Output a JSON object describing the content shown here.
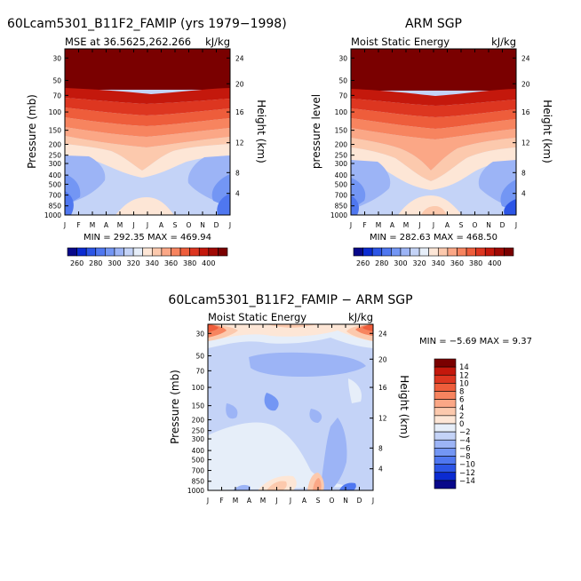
{
  "figure": {
    "colors": {
      "mse": [
        "#08088a",
        "#0b2bd1",
        "#2c55e6",
        "#4f77f0",
        "#7396f4",
        "#9cb4f6",
        "#c4d3f7",
        "#e6eef9",
        "#fde6d6",
        "#fcc9ad",
        "#fba786",
        "#f7845f",
        "#ee5d3b",
        "#dd3620",
        "#c4180c",
        "#a00904",
        "#7a0000"
      ],
      "diff": [
        "#08088a",
        "#0b2bd1",
        "#2c55e6",
        "#4f77f0",
        "#7396f4",
        "#9cb4f6",
        "#c4d3f7",
        "#e6eef9",
        "#fde6d6",
        "#fcc9ad",
        "#fba786",
        "#f7845f",
        "#ee5d3b",
        "#dd3620",
        "#c4180c",
        "#7a0000"
      ]
    }
  },
  "chart_data": [
    {
      "type": "heatmap",
      "title": "60Lcam5301_B11F2_FAMIP (yrs 1979−1998)",
      "subtitle_left": "MSE at 36.5625,262.266",
      "subtitle_right": "kJ/kg",
      "ylabel": "Pressure (mb)",
      "ylabel_right": "Height (km)",
      "x_ticks": [
        "J",
        "F",
        "M",
        "A",
        "M",
        "J",
        "J",
        "A",
        "S",
        "O",
        "N",
        "D",
        "J"
      ],
      "y_ticks": [
        "30",
        "50",
        "70",
        "100",
        "150",
        "200",
        "250",
        "300",
        "400",
        "500",
        "700",
        "850",
        "1000"
      ],
      "y_ticks_right": [
        "24",
        "20",
        "16",
        "12",
        "8",
        "4"
      ],
      "minmax": "MIN = 292.35  MAX = 469.94",
      "min": 292.35,
      "max": 469.94
    },
    {
      "type": "heatmap",
      "title": "ARM SGP",
      "subtitle_left": "Moist Static Energy",
      "subtitle_right": "kJ/kg",
      "ylabel": "pressure level",
      "ylabel_right": "Height (km)",
      "x_ticks": [
        "J",
        "F",
        "M",
        "A",
        "M",
        "J",
        "J",
        "A",
        "S",
        "O",
        "N",
        "D",
        "J"
      ],
      "y_ticks": [
        "30",
        "50",
        "70",
        "100",
        "150",
        "200",
        "250",
        "300",
        "400",
        "500",
        "700",
        "850",
        "1000"
      ],
      "y_ticks_right": [
        "24",
        "20",
        "16",
        "12",
        "8",
        "4"
      ],
      "minmax": "MIN = 282.63  MAX = 468.50",
      "min": 282.63,
      "max": 468.5
    },
    {
      "type": "heatmap",
      "title": "60Lcam5301_B11F2_FAMIP  −  ARM SGP",
      "subtitle_left": "Moist Static Energy",
      "subtitle_right": "kJ/kg",
      "ylabel": "Pressure (mb)",
      "ylabel_right": "Height (km)",
      "x_ticks": [
        "J",
        "F",
        "M",
        "A",
        "M",
        "J",
        "J",
        "A",
        "S",
        "O",
        "N",
        "D",
        "J"
      ],
      "y_ticks": [
        "30",
        "50",
        "70",
        "100",
        "150",
        "200",
        "250",
        "300",
        "400",
        "500",
        "700",
        "850",
        "1000"
      ],
      "y_ticks_right": [
        "24",
        "20",
        "16",
        "12",
        "8",
        "4"
      ],
      "minmax": "MIN = −5.69  MAX =   9.37",
      "min": -5.69,
      "max": 9.37
    }
  ],
  "colorbar_mse": {
    "labels": [
      "260",
      "280",
      "300",
      "320",
      "340",
      "360",
      "380",
      "400"
    ]
  },
  "colorbar_diff": {
    "labels": [
      "14",
      "12",
      "10",
      "8",
      "6",
      "4",
      "2",
      "0",
      "−2",
      "−4",
      "−6",
      "−8",
      "−10",
      "−12",
      "−14"
    ]
  }
}
